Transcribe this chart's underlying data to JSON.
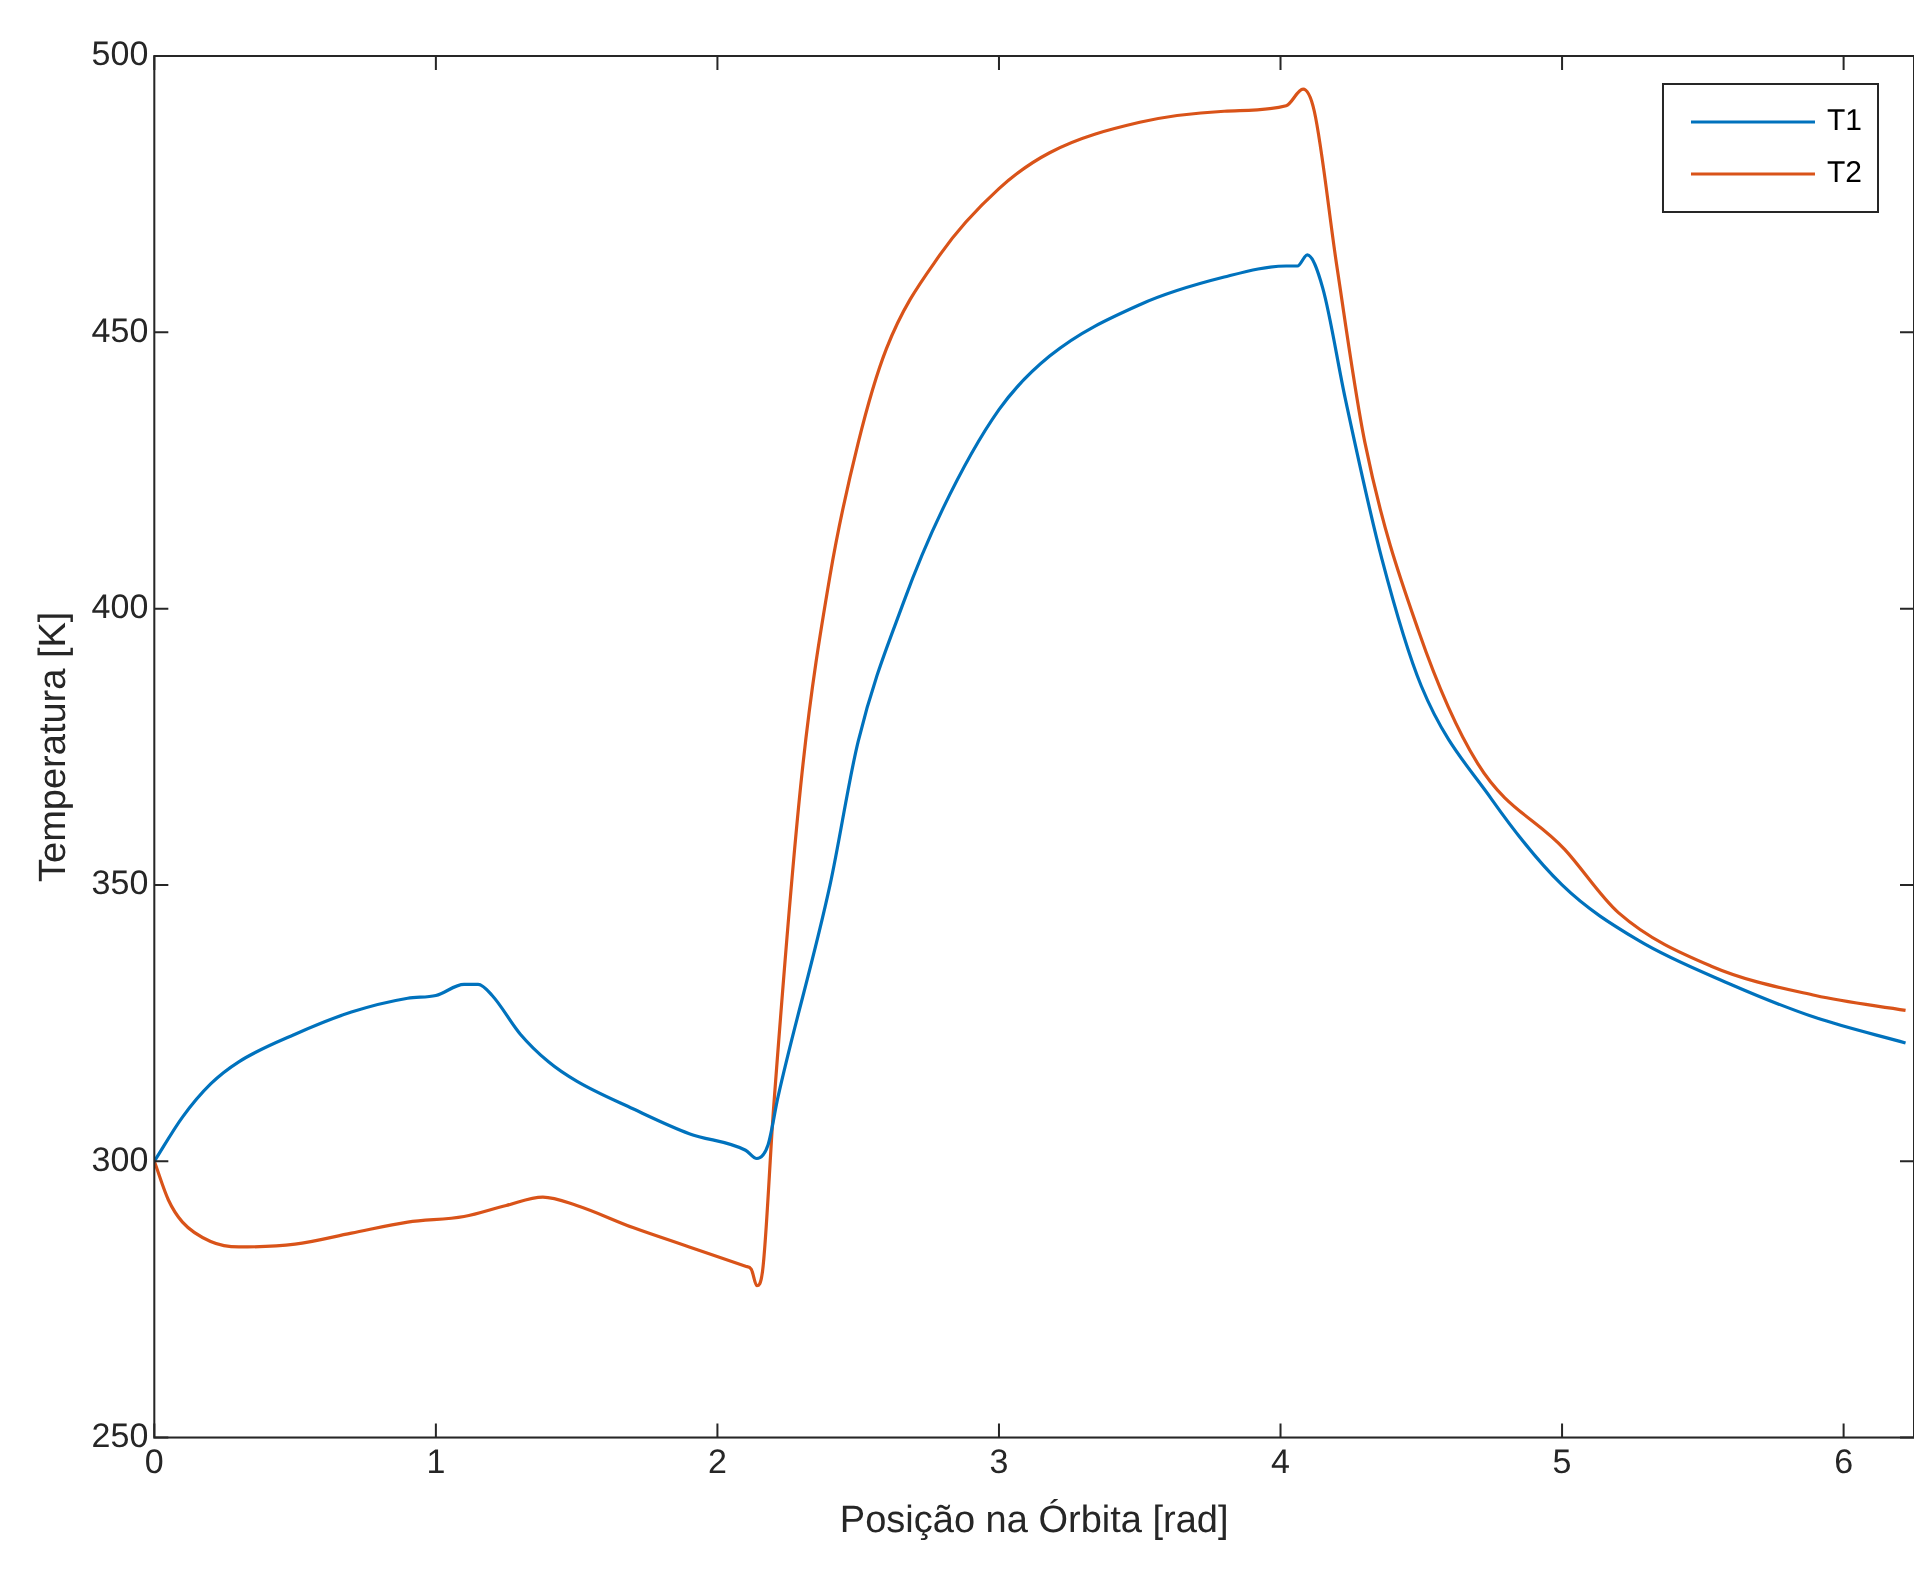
{
  "chart_data": {
    "type": "line",
    "xlabel": "Posição na Órbita [rad]",
    "ylabel": "Temperatura [K]",
    "xlim": [
      0,
      6.25
    ],
    "xticks": [
      0,
      1,
      2,
      3,
      4,
      5,
      6
    ],
    "ylim": [
      250,
      500
    ],
    "yticks": [
      250,
      300,
      350,
      400,
      450,
      500
    ],
    "grid": false,
    "legend": "top right",
    "marker": "none",
    "line_style": "solid",
    "series": [
      {
        "name": "T1",
        "color": "#0072bd",
        "x": [
          0,
          0.1,
          0.2,
          0.3,
          0.5,
          0.7,
          0.9,
          1.0,
          1.1,
          1.15,
          1.2,
          1.3,
          1.4,
          1.5,
          1.7,
          1.9,
          2.1,
          2.14,
          2.18,
          2.215,
          2.4,
          2.5,
          2.66,
          2.8,
          3.0,
          3.18,
          3.5,
          3.8,
          4.02,
          4.06,
          4.095,
          4.15,
          4.23,
          4.36,
          4.5,
          4.75,
          5.0,
          5.27,
          5.6,
          5.9,
          6.22
        ],
        "values": [
          300,
          308,
          314,
          318,
          323,
          327,
          329.5,
          330,
          332,
          332,
          330,
          323,
          318,
          314.5,
          309.5,
          305,
          302,
          300.5,
          303,
          311.6,
          350,
          376,
          401,
          418,
          436,
          445.7,
          455,
          460,
          462,
          462,
          464,
          458,
          438,
          409,
          386,
          365.5,
          350,
          340,
          332,
          326,
          321.4
        ]
      },
      {
        "name": "T2",
        "color": "#d95319",
        "x": [
          0,
          0.05,
          0.1,
          0.2,
          0.3,
          0.5,
          0.7,
          0.9,
          1.1,
          1.25,
          1.38,
          1.5,
          1.7,
          1.9,
          2.1,
          2.12,
          2.14,
          2.16,
          2.2,
          2.3,
          2.4,
          2.5,
          2.6,
          2.79,
          3.0,
          3.18,
          3.5,
          3.8,
          4.02,
          4.08,
          4.12,
          4.2,
          4.3,
          4.49,
          4.7,
          5.01,
          5.2,
          5.53,
          5.9,
          6.22
        ],
        "values": [
          300,
          293,
          289,
          285.5,
          284.5,
          285,
          287,
          289,
          290,
          292,
          293.5,
          292,
          288,
          284.5,
          281,
          280.5,
          277.5,
          280,
          310,
          370,
          406,
          430,
          447,
          464,
          476,
          482.5,
          488,
          490,
          491,
          494,
          490,
          462,
          430,
          396,
          372,
          356.4,
          345,
          335.3,
          330,
          327.3
        ]
      }
    ]
  }
}
